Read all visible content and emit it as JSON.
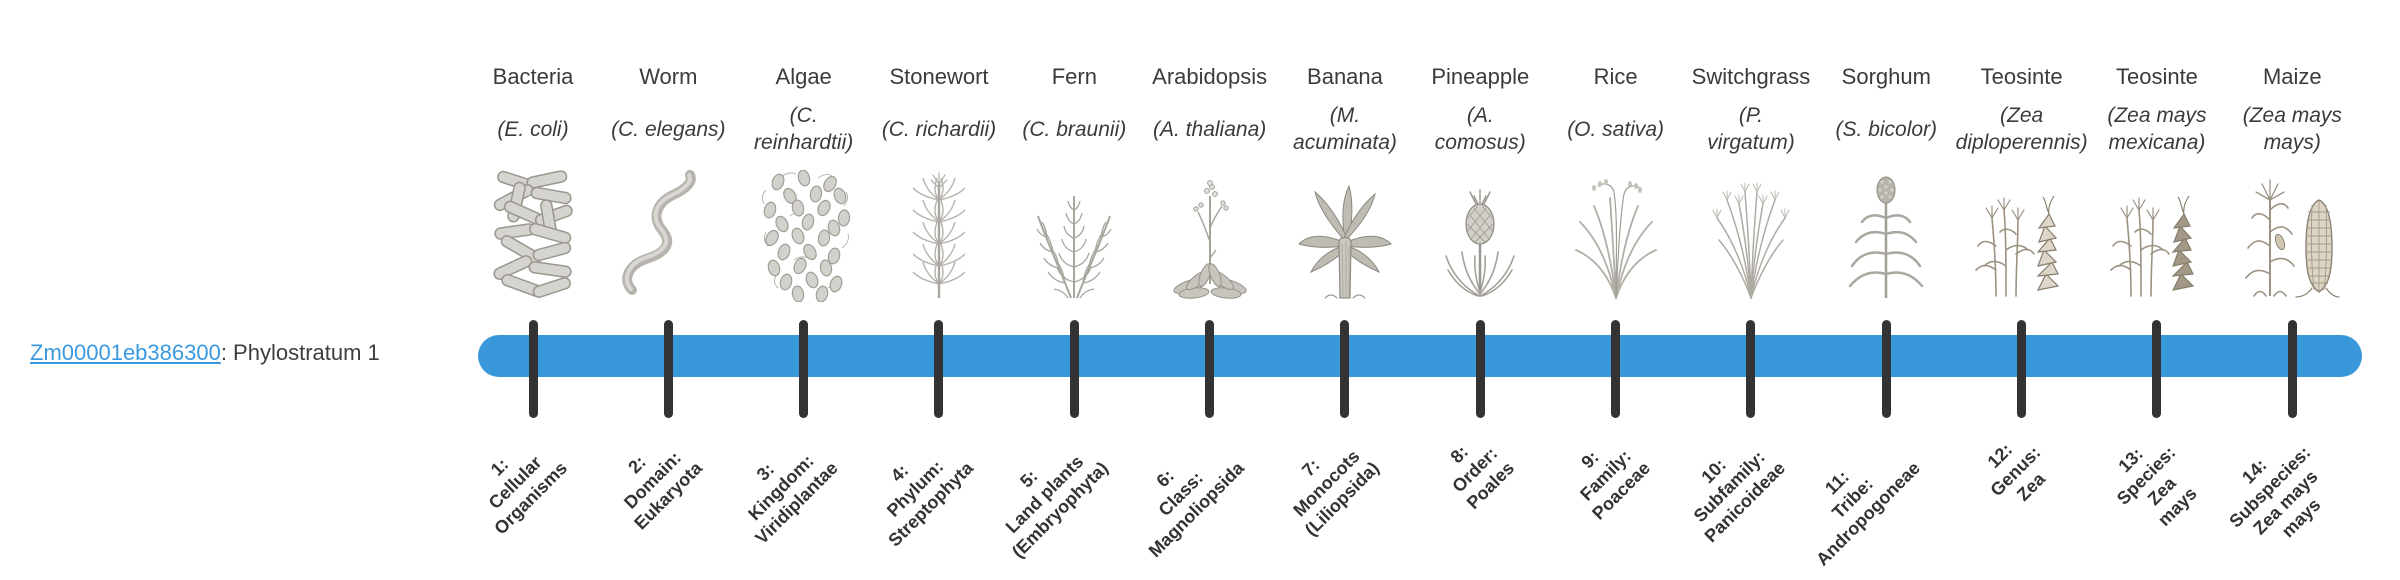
{
  "page": {
    "background": "#ffffff"
  },
  "gene": {
    "link_text": "Zm00001eb386300",
    "label_suffix": ": Phylostratum 1",
    "link_color": "#3a99e0"
  },
  "timeline": {
    "bar_color": "#3898da",
    "tick_color": "#333333"
  },
  "columns": [
    {
      "name": "Bacteria",
      "sci": "(E. coli)",
      "stratum": "1:\nCellular\nOrganisms",
      "icon": "bacteria"
    },
    {
      "name": "Worm",
      "sci": "(C. elegans)",
      "stratum": "2:\nDomain:\nEukaryota",
      "icon": "worm"
    },
    {
      "name": "Algae",
      "sci": "(C.\nreinhardtii)",
      "stratum": "3:\nKingdom:\nViridiplantae",
      "icon": "algae"
    },
    {
      "name": "Stonewort",
      "sci": "(C. richardii)",
      "stratum": "4:\nPhylum:\nStreptophyta",
      "icon": "stonewort"
    },
    {
      "name": "Fern",
      "sci": "(C. braunii)",
      "stratum": "5:\nLand plants\n(Embryophyta)",
      "icon": "fern"
    },
    {
      "name": "Arabidopsis",
      "sci": "(A. thaliana)",
      "stratum": "6:\nClass:\nMagnoliopsida",
      "icon": "arabidopsis"
    },
    {
      "name": "Banana",
      "sci": "(M.\nacuminata)",
      "stratum": "7:\nMonocots\n(Liliopsida)",
      "icon": "banana"
    },
    {
      "name": "Pineapple",
      "sci": "(A.\ncomosus)",
      "stratum": "8:\nOrder:\nPoales",
      "icon": "pineapple"
    },
    {
      "name": "Rice",
      "sci": "(O. sativa)",
      "stratum": "9:\nFamily:\nPoaceae",
      "icon": "rice"
    },
    {
      "name": "Switchgrass",
      "sci": "(P.\nvirgatum)",
      "stratum": "10:\nSubfamily:\nPanicoideae",
      "icon": "switchgrass"
    },
    {
      "name": "Sorghum",
      "sci": "(S. bicolor)",
      "stratum": "11:\nTribe:\nAndropogoneae",
      "icon": "sorghum"
    },
    {
      "name": "Teosinte",
      "sci": "(Zea\ndiploperennis)",
      "stratum": "12:\nGenus:\nZea",
      "icon": "teosinte",
      "tint": "#ded7c9"
    },
    {
      "name": "Teosinte",
      "sci": "(Zea mays\nmexicana)",
      "stratum": "13:\nSpecies:\nZea\nmays",
      "icon": "teosinte-mexicana",
      "tint": "#a39886"
    },
    {
      "name": "Maize",
      "sci": "(Zea mays\nmays)",
      "stratum": "14:\nSubspecies:\nZea mays\nmays",
      "icon": "maize"
    }
  ]
}
